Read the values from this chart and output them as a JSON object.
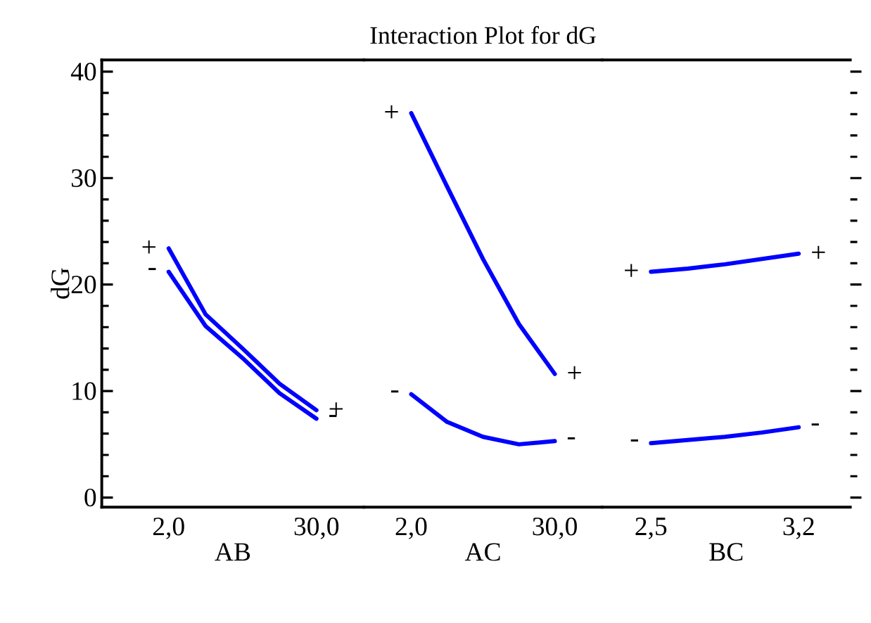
{
  "chart_data": [
    {
      "type": "line",
      "ylabel": "dG",
      "xlabel": "AB",
      "categories": [
        "2,0",
        null,
        null,
        null,
        "30,0"
      ],
      "ylim": [
        -0.9,
        41.1
      ],
      "yticks": [
        0,
        10,
        20,
        30,
        40
      ],
      "series": [
        {
          "color": "#0000ff",
          "values": [
            23.4,
            17.2,
            14.0,
            10.7,
            8.2
          ]
        },
        {
          "color": "#0000ff",
          "values": [
            21.2,
            16.1,
            13.1,
            9.8,
            7.4
          ]
        }
      ],
      "annotations": [
        "+",
        "-",
        "+",
        "-"
      ]
    },
    {
      "type": "line",
      "title": "Interaction Plot for dG",
      "xlabel": "AC",
      "categories": [
        "2,0",
        null,
        null,
        null,
        "30,0"
      ],
      "ylim": [
        -0.9,
        41.1
      ],
      "tick_labels": "x",
      "series": [
        {
          "color": "#0000ff",
          "values": [
            36.1,
            29.2,
            22.4,
            16.3,
            11.6
          ]
        },
        {
          "color": "#0000ff",
          "values": [
            9.7,
            7.1,
            5.7,
            5.0,
            5.3
          ]
        }
      ],
      "annotations": [
        "+",
        "-",
        "+",
        "-"
      ]
    },
    {
      "type": "line",
      "xlabel": "BC",
      "categories": [
        "2,5",
        null,
        null,
        null,
        "3,2"
      ],
      "ylim": [
        -0.9,
        41.1
      ],
      "yticks": [
        0,
        10,
        20,
        30,
        40
      ],
      "tick_labels": "x",
      "series": [
        {
          "color": "#0000ff",
          "values": [
            21.2,
            21.5,
            21.9,
            22.4,
            22.9
          ]
        },
        {
          "color": "#0000ff",
          "values": [
            5.1,
            5.4,
            5.7,
            6.1,
            6.6
          ]
        }
      ],
      "annotations": [
        "+",
        "-",
        "+",
        "-"
      ]
    }
  ]
}
